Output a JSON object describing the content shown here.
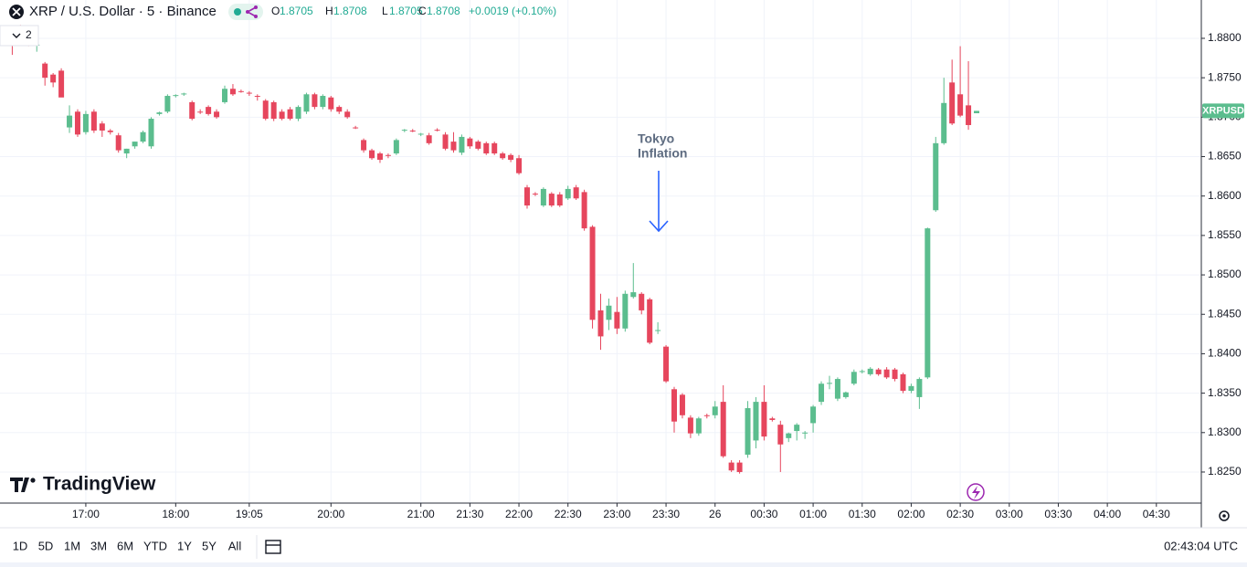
{
  "header": {
    "title": "XRP / U.S. Dollar · 5 · Binance",
    "ohlc_labels": [
      "O",
      "H",
      "L",
      "C"
    ],
    "change": "+0.0019 (+0.10%)",
    "badge": "2"
  },
  "chart_data": {
    "type": "candlestick",
    "up_color": "#5bbd8e",
    "down_color": "#e6465d",
    "grid": true,
    "open": [
      1.88,
      1.8802,
      1.8814,
      1.8794,
      1.8791,
      1.8768,
      1.8754,
      1.8759,
      1.8687,
      1.8707,
      1.8681,
      1.8707,
      1.8692,
      1.8683,
      1.8677,
      1.8654,
      1.8663,
      1.8669,
      1.8663,
      1.8704,
      1.8707,
      1.8727,
      1.8729,
      1.8719,
      1.8707,
      1.8713,
      1.8707,
      1.8719,
      1.8736,
      1.8733,
      1.8731,
      1.8727,
      1.8721,
      1.8719,
      1.8707,
      1.871,
      1.8698,
      1.8707,
      1.8729,
      1.8713,
      1.8725,
      1.8713,
      1.8707,
      1.8687,
      1.8671,
      1.8658,
      1.8654,
      1.8652,
      1.8654,
      1.8683,
      1.8683,
      1.8678,
      1.8677,
      1.8684,
      1.8678,
      1.8669,
      1.8655,
      1.8673,
      1.8669,
      1.8667,
      1.8667,
      1.8654,
      1.8652,
      1.8648,
      1.8611,
      1.8603,
      1.8588,
      1.8603,
      1.8602,
      1.8597,
      1.8611,
      1.8605,
      1.8561,
      1.8455,
      1.8443,
      1.8453,
      1.8432,
      1.8472,
      1.8476,
      1.8469,
      1.8429,
      1.8409,
      1.8355,
      1.8348,
      1.8319,
      1.8299,
      1.8322,
      1.8322,
      1.8339,
      1.8262,
      1.8262,
      1.8272,
      1.829,
      1.8339,
      1.8318,
      1.831,
      1.8293,
      1.8302,
      1.8299,
      1.8312,
      1.8339,
      1.8362,
      1.8343,
      1.8345,
      1.8362,
      1.8377,
      1.8374,
      1.838,
      1.838,
      1.838,
      1.8374,
      1.8353,
      1.8345,
      1.837,
      1.8582,
      1.8667,
      1.8744,
      1.8729,
      1.8715,
      1.8705
    ],
    "high": [
      1.8802,
      1.8805,
      1.8817,
      1.8797,
      1.8794,
      1.877,
      1.8756,
      1.8762,
      1.8715,
      1.871,
      1.8708,
      1.871,
      1.8695,
      1.8685,
      1.868,
      1.866,
      1.8669,
      1.8683,
      1.87,
      1.8707,
      1.8729,
      1.8729,
      1.8731,
      1.8721,
      1.871,
      1.8715,
      1.871,
      1.874,
      1.8742,
      1.8735,
      1.8733,
      1.8729,
      1.8723,
      1.8721,
      1.871,
      1.8713,
      1.8715,
      1.8731,
      1.8731,
      1.8729,
      1.8727,
      1.8715,
      1.871,
      1.8689,
      1.8673,
      1.866,
      1.8656,
      1.8654,
      1.8673,
      1.8685,
      1.8685,
      1.868,
      1.868,
      1.8686,
      1.8681,
      1.8681,
      1.8678,
      1.8675,
      1.8671,
      1.8669,
      1.8669,
      1.8656,
      1.8654,
      1.8652,
      1.8614,
      1.8605,
      1.8611,
      1.8605,
      1.8605,
      1.8613,
      1.8614,
      1.8608,
      1.8563,
      1.8476,
      1.847,
      1.8472,
      1.848,
      1.8515,
      1.8478,
      1.8471,
      1.844,
      1.8411,
      1.8358,
      1.835,
      1.8322,
      1.832,
      1.8324,
      1.834,
      1.836,
      1.8265,
      1.8265,
      1.834,
      1.8345,
      1.836,
      1.832,
      1.8315,
      1.83,
      1.8312,
      1.8302,
      1.8335,
      1.8365,
      1.8372,
      1.837,
      1.8352,
      1.838,
      1.838,
      1.8383,
      1.8382,
      1.8383,
      1.8382,
      1.8376,
      1.8362,
      1.837,
      1.856,
      1.8675,
      1.875,
      1.8773,
      1.879,
      1.8771,
      1.8708
    ],
    "low": [
      1.8795,
      1.8779,
      1.8808,
      1.879,
      1.8783,
      1.874,
      1.8738,
      1.8728,
      1.868,
      1.8675,
      1.8678,
      1.868,
      1.8675,
      1.8678,
      1.8655,
      1.8648,
      1.866,
      1.8667,
      1.866,
      1.8702,
      1.8705,
      1.8725,
      1.8727,
      1.8696,
      1.8704,
      1.8702,
      1.8698,
      1.8717,
      1.8727,
      1.8731,
      1.8727,
      1.8721,
      1.8696,
      1.8695,
      1.8696,
      1.8696,
      1.8695,
      1.8704,
      1.871,
      1.871,
      1.8707,
      1.8704,
      1.8698,
      1.8685,
      1.8655,
      1.8646,
      1.8642,
      1.8648,
      1.8652,
      1.8681,
      1.8681,
      1.8676,
      1.8665,
      1.8682,
      1.8658,
      1.8655,
      1.8652,
      1.866,
      1.8658,
      1.8652,
      1.8652,
      1.8646,
      1.8643,
      1.8627,
      1.8584,
      1.86,
      1.8586,
      1.8586,
      1.8586,
      1.8595,
      1.8595,
      1.8556,
      1.8432,
      1.8405,
      1.843,
      1.8425,
      1.8428,
      1.847,
      1.845,
      1.8412,
      1.8425,
      1.8363,
      1.83,
      1.8318,
      1.8293,
      1.8296,
      1.8318,
      1.8318,
      1.8268,
      1.825,
      1.8248,
      1.8268,
      1.828,
      1.829,
      1.8314,
      1.825,
      1.8288,
      1.829,
      1.8292,
      1.83,
      1.8335,
      1.8355,
      1.834,
      1.8343,
      1.836,
      1.8375,
      1.8372,
      1.8372,
      1.8368,
      1.8365,
      1.835,
      1.835,
      1.833,
      1.8368,
      1.858,
      1.8665,
      1.869,
      1.87,
      1.8684,
      1.8705
    ],
    "close": [
      1.8797,
      1.8791,
      1.881,
      1.8791,
      1.8792,
      1.875,
      1.8744,
      1.8725,
      1.8702,
      1.8678,
      1.8704,
      1.8683,
      1.8683,
      1.8681,
      1.8658,
      1.866,
      1.8669,
      1.8681,
      1.8698,
      1.8706,
      1.8727,
      1.8728,
      1.873,
      1.8698,
      1.8706,
      1.8704,
      1.87,
      1.8736,
      1.8729,
      1.8732,
      1.873,
      1.8726,
      1.8698,
      1.8698,
      1.8698,
      1.8698,
      1.8713,
      1.8729,
      1.8713,
      1.8727,
      1.871,
      1.8707,
      1.87,
      1.8686,
      1.8658,
      1.8648,
      1.8646,
      1.8651,
      1.8671,
      1.8684,
      1.8682,
      1.8679,
      1.8667,
      1.8683,
      1.866,
      1.8658,
      1.8675,
      1.8663,
      1.866,
      1.8654,
      1.8654,
      1.8648,
      1.8646,
      1.8629,
      1.8588,
      1.8602,
      1.8609,
      1.8588,
      1.8588,
      1.8609,
      1.8597,
      1.8559,
      1.8443,
      1.8422,
      1.8461,
      1.8432,
      1.8476,
      1.8478,
      1.8455,
      1.8414,
      1.843,
      1.8365,
      1.8314,
      1.8322,
      1.8299,
      1.8318,
      1.8321,
      1.8333,
      1.827,
      1.8252,
      1.825,
      1.8331,
      1.8339,
      1.8295,
      1.8316,
      1.8285,
      1.8299,
      1.831,
      1.83,
      1.8333,
      1.8362,
      1.8363,
      1.8368,
      1.8351,
      1.8377,
      1.8378,
      1.8381,
      1.8374,
      1.837,
      1.8368,
      1.8353,
      1.8359,
      1.8368,
      1.8559,
      1.8667,
      1.8718,
      1.8692,
      1.8702,
      1.869,
      1.8708
    ],
    "xlim": [
      -0.5,
      146.5
    ],
    "xticks": [
      {
        "value": 10,
        "label": "17:00"
      },
      {
        "value": 21,
        "label": "18:00"
      },
      {
        "value": 30,
        "label": "19:05"
      },
      {
        "value": 40,
        "label": "20:00"
      },
      {
        "value": 51,
        "label": "21:00"
      },
      {
        "value": 57,
        "label": "21:30"
      },
      {
        "value": 63,
        "label": "22:00"
      },
      {
        "value": 69,
        "label": "22:30"
      },
      {
        "value": 75,
        "label": "23:00"
      },
      {
        "value": 81,
        "label": "23:30"
      },
      {
        "value": 87,
        "label": "26"
      },
      {
        "value": 93,
        "label": "00:30"
      },
      {
        "value": 99,
        "label": "01:00"
      },
      {
        "value": 105,
        "label": "01:30"
      },
      {
        "value": 111,
        "label": "02:00"
      },
      {
        "value": 117,
        "label": "02:30"
      },
      {
        "value": 123,
        "label": "03:00"
      },
      {
        "value": 129,
        "label": "03:30"
      },
      {
        "value": 135,
        "label": "04:00"
      },
      {
        "value": 141,
        "label": "04:30"
      }
    ],
    "ylim": [
      1.82106,
      1.88486
    ],
    "yticks": [
      {
        "value": 1.825,
        "label": "1.8250"
      },
      {
        "value": 1.83,
        "label": "1.8300"
      },
      {
        "value": 1.835,
        "label": "1.8350"
      },
      {
        "value": 1.84,
        "label": "1.8400"
      },
      {
        "value": 1.845,
        "label": "1.8450"
      },
      {
        "value": 1.85,
        "label": "1.8500"
      },
      {
        "value": 1.855,
        "label": "1.8550"
      },
      {
        "value": 1.86,
        "label": "1.8600"
      },
      {
        "value": 1.865,
        "label": "1.8650"
      },
      {
        "value": 1.87,
        "label": "1.8700"
      },
      {
        "value": 1.875,
        "label": "1.8750"
      },
      {
        "value": 1.88,
        "label": "1.8800"
      }
    ],
    "symbol_label": "XRPUSD",
    "annotation": [
      "Tokyo",
      "Inflation"
    ]
  },
  "brand": "TradingView",
  "toolbar": {
    "ranges": [
      "1D",
      "5D",
      "1M",
      "3M",
      "6M",
      "YTD",
      "1Y",
      "5Y",
      "All"
    ],
    "clock": "02:43:04 UTC"
  }
}
